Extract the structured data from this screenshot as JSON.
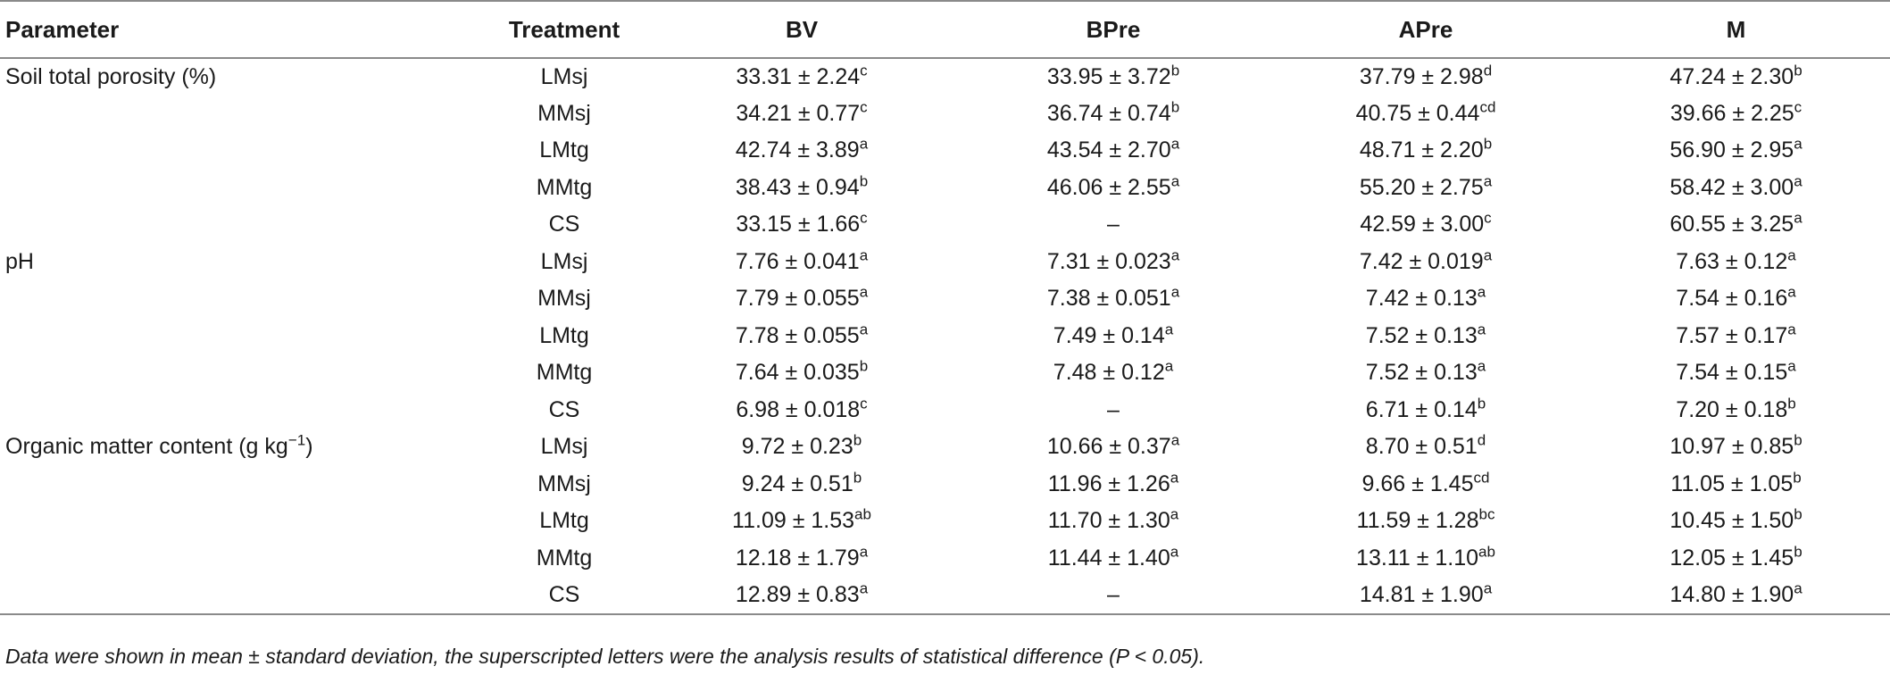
{
  "table": {
    "headers": [
      "Parameter",
      "Treatment",
      "BV",
      "BPre",
      "APre",
      "M"
    ],
    "groups": [
      {
        "parameter": "Soil total porosity (%)",
        "parameter_sup": "",
        "parameter_suffix": "",
        "rows": [
          {
            "treatment": "LMsj",
            "cells": [
              {
                "v": "33.31 ± 2.24",
                "s": "c"
              },
              {
                "v": "33.95 ± 3.72",
                "s": "b"
              },
              {
                "v": "37.79 ± 2.98",
                "s": "d"
              },
              {
                "v": "47.24 ± 2.30",
                "s": "b"
              }
            ]
          },
          {
            "treatment": "MMsj",
            "cells": [
              {
                "v": "34.21 ± 0.77",
                "s": "c"
              },
              {
                "v": "36.74 ± 0.74",
                "s": "b"
              },
              {
                "v": "40.75 ± 0.44",
                "s": "cd"
              },
              {
                "v": "39.66 ± 2.25",
                "s": "c"
              }
            ]
          },
          {
            "treatment": "LMtg",
            "cells": [
              {
                "v": "42.74 ± 3.89",
                "s": "a"
              },
              {
                "v": "43.54 ± 2.70",
                "s": "a"
              },
              {
                "v": "48.71 ± 2.20",
                "s": "b"
              },
              {
                "v": "56.90 ± 2.95",
                "s": "a"
              }
            ]
          },
          {
            "treatment": "MMtg",
            "cells": [
              {
                "v": "38.43 ± 0.94",
                "s": "b"
              },
              {
                "v": "46.06 ± 2.55",
                "s": "a"
              },
              {
                "v": "55.20 ± 2.75",
                "s": "a"
              },
              {
                "v": "58.42 ± 3.00",
                "s": "a"
              }
            ]
          },
          {
            "treatment": "CS",
            "cells": [
              {
                "v": "33.15 ± 1.66",
                "s": "c"
              },
              {
                "v": "–",
                "s": ""
              },
              {
                "v": "42.59 ± 3.00",
                "s": "c"
              },
              {
                "v": "60.55 ± 3.25",
                "s": "a"
              }
            ]
          }
        ]
      },
      {
        "parameter": "pH",
        "parameter_sup": "",
        "parameter_suffix": "",
        "rows": [
          {
            "treatment": "LMsj",
            "cells": [
              {
                "v": "7.76 ± 0.041",
                "s": "a"
              },
              {
                "v": "7.31 ± 0.023",
                "s": "a"
              },
              {
                "v": "7.42 ± 0.019",
                "s": "a"
              },
              {
                "v": "7.63 ± 0.12",
                "s": "a"
              }
            ]
          },
          {
            "treatment": "MMsj",
            "cells": [
              {
                "v": "7.79 ± 0.055",
                "s": "a"
              },
              {
                "v": "7.38 ± 0.051",
                "s": "a"
              },
              {
                "v": "7.42 ± 0.13",
                "s": "a"
              },
              {
                "v": "7.54 ± 0.16",
                "s": "a"
              }
            ]
          },
          {
            "treatment": "LMtg",
            "cells": [
              {
                "v": "7.78 ± 0.055",
                "s": "a"
              },
              {
                "v": "7.49 ± 0.14",
                "s": "a"
              },
              {
                "v": "7.52 ± 0.13",
                "s": "a"
              },
              {
                "v": "7.57 ± 0.17",
                "s": "a"
              }
            ]
          },
          {
            "treatment": "MMtg",
            "cells": [
              {
                "v": "7.64 ± 0.035",
                "s": "b"
              },
              {
                "v": "7.48 ± 0.12",
                "s": "a"
              },
              {
                "v": "7.52 ± 0.13",
                "s": "a"
              },
              {
                "v": "7.54 ± 0.15",
                "s": "a"
              }
            ]
          },
          {
            "treatment": "CS",
            "cells": [
              {
                "v": "6.98 ± 0.018",
                "s": "c"
              },
              {
                "v": "–",
                "s": ""
              },
              {
                "v": "6.71 ± 0.14",
                "s": "b"
              },
              {
                "v": "7.20 ± 0.18",
                "s": "b"
              }
            ]
          }
        ]
      },
      {
        "parameter": "Organic matter content (g kg",
        "parameter_sup": "−1",
        "parameter_suffix": ")",
        "rows": [
          {
            "treatment": "LMsj",
            "cells": [
              {
                "v": "9.72 ± 0.23",
                "s": "b"
              },
              {
                "v": "10.66 ± 0.37",
                "s": "a"
              },
              {
                "v": "8.70 ± 0.51",
                "s": "d"
              },
              {
                "v": "10.97 ± 0.85",
                "s": "b"
              }
            ]
          },
          {
            "treatment": "MMsj",
            "cells": [
              {
                "v": "9.24 ± 0.51",
                "s": "b"
              },
              {
                "v": "11.96 ± 1.26",
                "s": "a"
              },
              {
                "v": "9.66 ± 1.45",
                "s": "cd"
              },
              {
                "v": "11.05 ± 1.05",
                "s": "b"
              }
            ]
          },
          {
            "treatment": "LMtg",
            "cells": [
              {
                "v": "11.09 ± 1.53",
                "s": "ab"
              },
              {
                "v": "11.70 ± 1.30",
                "s": "a"
              },
              {
                "v": "11.59 ± 1.28",
                "s": "bc"
              },
              {
                "v": "10.45 ± 1.50",
                "s": "b"
              }
            ]
          },
          {
            "treatment": "MMtg",
            "cells": [
              {
                "v": "12.18 ± 1.79",
                "s": "a"
              },
              {
                "v": "11.44 ± 1.40",
                "s": "a"
              },
              {
                "v": "13.11 ± 1.10",
                "s": "ab"
              },
              {
                "v": "12.05 ± 1.45",
                "s": "b"
              }
            ]
          },
          {
            "treatment": "CS",
            "cells": [
              {
                "v": "12.89 ± 0.83",
                "s": "a"
              },
              {
                "v": "–",
                "s": ""
              },
              {
                "v": "14.81 ± 1.90",
                "s": "a"
              },
              {
                "v": "14.80 ± 1.90",
                "s": "a"
              }
            ]
          }
        ]
      }
    ],
    "footnote": "Data were shown in mean ± standard deviation, the superscripted letters were the analysis results of statistical difference (P < 0.05)."
  }
}
